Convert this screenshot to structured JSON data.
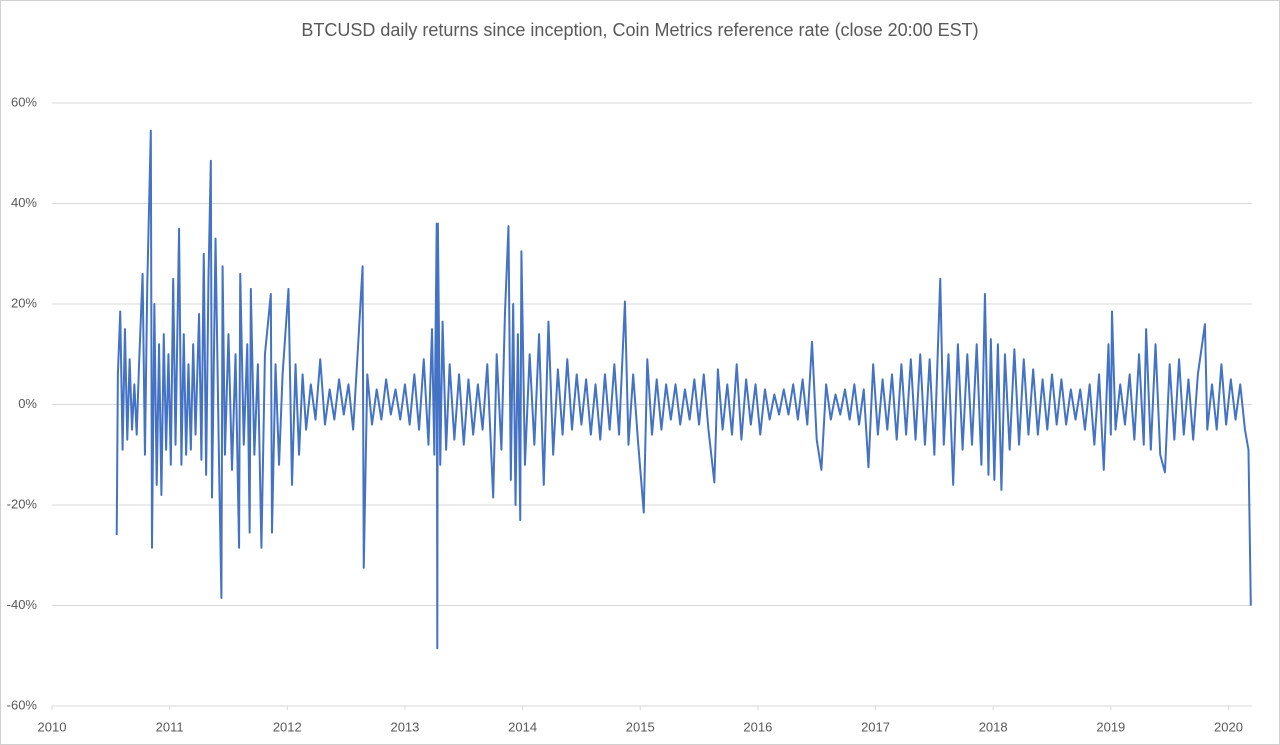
{
  "chart_data": {
    "type": "line",
    "title": "BTCUSD daily returns since inception, Coin Metrics reference rate (close 20:00 EST)",
    "color": "#4472c4",
    "grid": true,
    "xlim": [
      2010,
      2020.2
    ],
    "xticks": [
      2010,
      2011,
      2012,
      2013,
      2014,
      2015,
      2016,
      2017,
      2018,
      2019,
      2020
    ],
    "ylim": [
      -60,
      60
    ],
    "yticks": [
      {
        "value": -60,
        "label": "-60%"
      },
      {
        "value": -40,
        "label": "-40%"
      },
      {
        "value": -20,
        "label": "-20%"
      },
      {
        "value": 0,
        "label": "0%"
      },
      {
        "value": 20,
        "label": "20%"
      },
      {
        "value": 40,
        "label": "40%"
      },
      {
        "value": 60,
        "label": "60%"
      }
    ],
    "x": [
      2010.55,
      2010.56,
      2010.58,
      2010.6,
      2010.62,
      2010.64,
      2010.66,
      2010.68,
      2010.7,
      2010.72,
      2010.74,
      2010.77,
      2010.79,
      2010.81,
      2010.84,
      2010.85,
      2010.87,
      2010.89,
      2010.91,
      2010.93,
      2010.95,
      2010.97,
      2010.99,
      2011.01,
      2011.03,
      2011.05,
      2011.08,
      2011.1,
      2011.12,
      2011.14,
      2011.16,
      2011.18,
      2011.2,
      2011.22,
      2011.25,
      2011.27,
      2011.29,
      2011.31,
      2011.33,
      2011.35,
      2011.36,
      2011.39,
      2011.42,
      2011.44,
      2011.45,
      2011.47,
      2011.5,
      2011.53,
      2011.56,
      2011.59,
      2011.6,
      2011.63,
      2011.66,
      2011.68,
      2011.69,
      2011.72,
      2011.75,
      2011.78,
      2011.81,
      2011.86,
      2011.87,
      2011.9,
      2011.93,
      2011.96,
      2012.01,
      2012.04,
      2012.07,
      2012.1,
      2012.13,
      2012.16,
      2012.2,
      2012.24,
      2012.28,
      2012.32,
      2012.36,
      2012.4,
      2012.44,
      2012.48,
      2012.52,
      2012.56,
      2012.6,
      2012.64,
      2012.65,
      2012.68,
      2012.72,
      2012.76,
      2012.8,
      2012.84,
      2012.88,
      2012.92,
      2012.96,
      2013.0,
      2013.04,
      2013.08,
      2013.12,
      2013.16,
      2013.2,
      2013.23,
      2013.25,
      2013.27,
      2013.275,
      2013.28,
      2013.3,
      2013.32,
      2013.35,
      2013.38,
      2013.42,
      2013.46,
      2013.5,
      2013.54,
      2013.58,
      2013.62,
      2013.66,
      2013.7,
      2013.75,
      2013.78,
      2013.82,
      2013.85,
      2013.88,
      2013.9,
      2013.92,
      2013.94,
      2013.96,
      2013.98,
      2013.99,
      2014.02,
      2014.06,
      2014.1,
      2014.14,
      2014.18,
      2014.22,
      2014.26,
      2014.3,
      2014.34,
      2014.38,
      2014.42,
      2014.46,
      2014.5,
      2014.54,
      2014.58,
      2014.62,
      2014.66,
      2014.7,
      2014.74,
      2014.78,
      2014.82,
      2014.87,
      2014.9,
      2014.94,
      2014.98,
      2015.03,
      2015.06,
      2015.1,
      2015.14,
      2015.18,
      2015.22,
      2015.26,
      2015.3,
      2015.34,
      2015.38,
      2015.42,
      2015.46,
      2015.5,
      2015.54,
      2015.58,
      2015.63,
      2015.66,
      2015.7,
      2015.74,
      2015.78,
      2015.82,
      2015.86,
      2015.9,
      2015.94,
      2015.98,
      2016.02,
      2016.06,
      2016.1,
      2016.14,
      2016.18,
      2016.22,
      2016.26,
      2016.3,
      2016.34,
      2016.38,
      2016.42,
      2016.46,
      2016.5,
      2016.54,
      2016.58,
      2016.62,
      2016.66,
      2016.7,
      2016.74,
      2016.78,
      2016.82,
      2016.86,
      2016.9,
      2016.94,
      2016.98,
      2017.02,
      2017.06,
      2017.1,
      2017.14,
      2017.18,
      2017.22,
      2017.26,
      2017.3,
      2017.34,
      2017.38,
      2017.42,
      2017.46,
      2017.5,
      2017.55,
      2017.58,
      2017.62,
      2017.66,
      2017.7,
      2017.74,
      2017.78,
      2017.82,
      2017.86,
      2017.9,
      2017.93,
      2017.96,
      2017.98,
      2018.01,
      2018.04,
      2018.07,
      2018.1,
      2018.14,
      2018.18,
      2018.22,
      2018.26,
      2018.3,
      2018.34,
      2018.38,
      2018.42,
      2018.46,
      2018.5,
      2018.54,
      2018.58,
      2018.62,
      2018.66,
      2018.7,
      2018.74,
      2018.78,
      2018.82,
      2018.86,
      2018.9,
      2018.94,
      2018.98,
      2019.0,
      2019.01,
      2019.04,
      2019.08,
      2019.12,
      2019.16,
      2019.2,
      2019.24,
      2019.28,
      2019.3,
      2019.34,
      2019.38,
      2019.42,
      2019.46,
      2019.5,
      2019.54,
      2019.58,
      2019.62,
      2019.66,
      2019.7,
      2019.74,
      2019.8,
      2019.82,
      2019.86,
      2019.9,
      2019.94,
      2019.98,
      2020.02,
      2020.06,
      2020.1,
      2020.14,
      2020.17,
      2020.19
    ],
    "values": [
      -26,
      6,
      18.5,
      -9,
      15,
      -7,
      9,
      -5,
      4,
      -6,
      8,
      26,
      -10,
      24,
      54.5,
      -28.5,
      20,
      -16,
      12,
      -18,
      14,
      -9,
      10,
      -12,
      25,
      -8,
      35,
      -12,
      14,
      -10,
      8,
      -9,
      12,
      -6,
      18,
      -11,
      30,
      -14,
      25,
      48.5,
      -18.5,
      33,
      -12,
      -38.5,
      27.5,
      -10,
      14,
      -13,
      10,
      -28.5,
      26,
      -8,
      12,
      -25.5,
      23,
      -10,
      8,
      -28.5,
      10,
      22,
      -25.5,
      8,
      -12,
      6,
      23,
      -16,
      8,
      -10,
      6,
      -5,
      4,
      -3,
      9,
      -4,
      3,
      -3,
      5,
      -2,
      4,
      -5,
      11,
      27.5,
      -32.5,
      6,
      -4,
      3,
      -3,
      5,
      -2,
      3,
      -3,
      4,
      -4,
      6,
      -5,
      9,
      -8,
      15,
      -10,
      36,
      -48.5,
      36,
      -12,
      16.5,
      -9,
      8,
      -7,
      6,
      -8,
      5,
      -6,
      4,
      -5,
      8,
      -18.5,
      10,
      -9,
      18,
      35.5,
      -15,
      20,
      -20,
      14,
      -23,
      30.5,
      -12,
      10,
      -8,
      14,
      -16,
      16.5,
      -10,
      7,
      -6,
      9,
      -5,
      6,
      -4,
      5,
      -6,
      4,
      -7,
      6,
      -5,
      8,
      -6,
      20.5,
      -8,
      6,
      -7,
      -21.5,
      9,
      -6,
      5,
      -5,
      4,
      -3,
      4,
      -4,
      3,
      -3,
      5,
      -4,
      6,
      -5,
      -15.5,
      7,
      -5,
      4,
      -6,
      8,
      -7,
      5,
      -4,
      4,
      -6,
      3,
      -3,
      2,
      -2,
      3,
      -2,
      4,
      -3,
      5,
      -4,
      12.5,
      -7,
      -13,
      4,
      -3,
      2,
      -2,
      3,
      -3,
      4,
      -4,
      3,
      -12.5,
      8,
      -6,
      5,
      -5,
      6,
      -7,
      8,
      -6,
      9,
      -7,
      10,
      -8,
      9,
      -10,
      25,
      -8,
      10,
      -16,
      12,
      -9,
      10,
      -8,
      12,
      -12,
      22,
      -14,
      13,
      -15,
      12,
      -17,
      10,
      -9,
      11,
      -8,
      9,
      -6,
      7,
      -6,
      5,
      -5,
      6,
      -4,
      5,
      -4,
      3,
      -3,
      3,
      -5,
      4,
      -8,
      6,
      -13,
      12,
      -6,
      18.5,
      -5,
      4,
      -4,
      6,
      -7,
      10,
      -8,
      15,
      -9,
      12,
      -10,
      -13.5,
      8,
      -7,
      9,
      -6,
      5,
      -7,
      6,
      16,
      -5,
      4,
      -5,
      8,
      -4,
      5,
      -3,
      4,
      -5,
      -9,
      -40
    ]
  }
}
